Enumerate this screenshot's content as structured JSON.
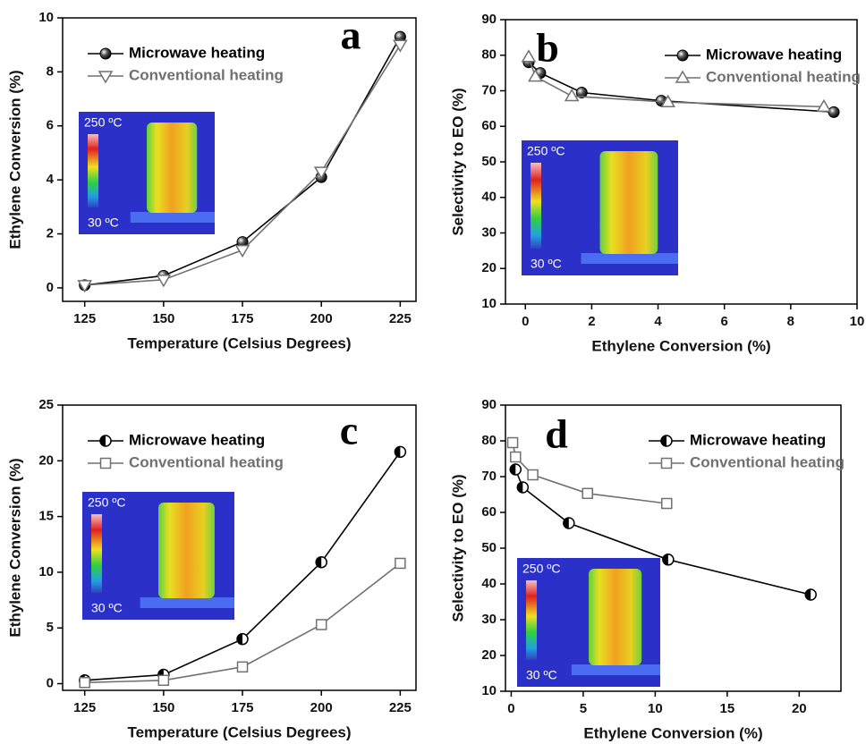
{
  "chart_data": [
    {
      "type": "line",
      "panel_label": "a",
      "xlabel": "Temperature (Celsius Degrees)",
      "ylabel": "Ethylene Conversion (%)",
      "x": [
        125,
        150,
        175,
        200,
        225
      ],
      "series": [
        {
          "name": "Microwave heating",
          "color": "#000000",
          "marker": "circle",
          "values": [
            0.1,
            0.45,
            1.7,
            4.1,
            9.3
          ]
        },
        {
          "name": "Conventional heating",
          "color": "#707070",
          "marker": "triangle-down",
          "values": [
            0.1,
            0.3,
            1.4,
            4.3,
            9.0
          ]
        }
      ],
      "xlim": [
        118,
        230
      ],
      "ylim": [
        -0.5,
        10
      ],
      "xticks": [
        125,
        150,
        175,
        200,
        225
      ],
      "yticks": [
        0,
        2,
        4,
        6,
        8,
        10
      ],
      "legend": "upper left",
      "inset_labels": [
        "250 ºC",
        "30 ºC"
      ]
    },
    {
      "type": "line",
      "panel_label": "b",
      "xlabel": "Ethylene Conversion (%)",
      "ylabel": "Selectivity to EO (%)",
      "series": [
        {
          "name": "Microwave heating",
          "color": "#000000",
          "marker": "circle",
          "x": [
            0.1,
            0.45,
            1.7,
            4.1,
            9.3
          ],
          "values": [
            78,
            75,
            69.5,
            67.2,
            64
          ]
        },
        {
          "name": "Conventional heating",
          "color": "#707070",
          "marker": "triangle-up",
          "x": [
            0.1,
            0.3,
            1.4,
            4.3,
            9.0
          ],
          "values": [
            79.5,
            74,
            68.5,
            66.8,
            65.5
          ]
        }
      ],
      "xlim": [
        -0.6,
        10
      ],
      "ylim": [
        10,
        90
      ],
      "xticks": [
        0,
        2,
        4,
        6,
        8,
        10
      ],
      "yticks": [
        10,
        20,
        30,
        40,
        50,
        60,
        70,
        80,
        90
      ],
      "legend": "upper right",
      "inset_labels": [
        "250 ºC",
        "30 ºC"
      ]
    },
    {
      "type": "line",
      "panel_label": "c",
      "xlabel": "Temperature (Celsius Degrees)",
      "ylabel": "Ethylene Conversion (%)",
      "x": [
        125,
        150,
        175,
        200,
        225
      ],
      "series": [
        {
          "name": "Microwave heating",
          "color": "#000000",
          "marker": "half-circle",
          "values": [
            0.3,
            0.8,
            4.0,
            10.9,
            20.8
          ]
        },
        {
          "name": "Conventional heating",
          "color": "#707070",
          "marker": "square",
          "values": [
            0.1,
            0.3,
            1.5,
            5.3,
            10.8
          ]
        }
      ],
      "xlim": [
        118,
        230
      ],
      "ylim": [
        -0.6,
        25
      ],
      "xticks": [
        125,
        150,
        175,
        200,
        225
      ],
      "yticks": [
        0,
        5,
        10,
        15,
        20,
        25
      ],
      "legend": "upper left",
      "inset_labels": [
        "250 ºC",
        "30 ºC"
      ]
    },
    {
      "type": "line",
      "panel_label": "d",
      "xlabel": "Ethylene Conversion (%)",
      "ylabel": "Selectivity to EO (%)",
      "series": [
        {
          "name": "Microwave heating",
          "color": "#000000",
          "marker": "half-circle",
          "x": [
            0.3,
            0.8,
            4.0,
            10.9,
            20.8
          ],
          "values": [
            72,
            67,
            57,
            46.8,
            37
          ]
        },
        {
          "name": "Conventional heating",
          "color": "#707070",
          "marker": "square",
          "x": [
            0.1,
            0.3,
            1.5,
            5.3,
            10.8
          ],
          "values": [
            79.5,
            75.5,
            70.5,
            65.3,
            62.5
          ]
        }
      ],
      "xlim": [
        -0.4,
        22.9
      ],
      "ylim": [
        10,
        90
      ],
      "xticks": [
        0,
        5,
        10,
        15,
        20
      ],
      "yticks": [
        10,
        20,
        30,
        40,
        50,
        60,
        70,
        80,
        90
      ],
      "legend": "upper right",
      "inset_labels": [
        "250 ºC",
        "30 ºC"
      ]
    }
  ]
}
